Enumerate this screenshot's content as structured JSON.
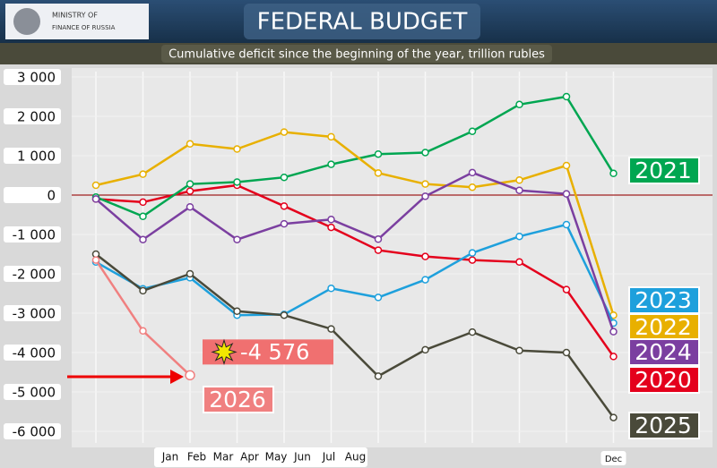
{
  "header": {
    "logo_line1": "MINISTRY OF",
    "logo_line2": "FINANCE OF RUSSIA"
  },
  "chart_data": {
    "type": "line",
    "title": "FEDERAL BUDGET",
    "subtitle": "Cumulative deficit since the beginning of the year, trillion rubles",
    "categories": [
      "Jan",
      "Feb",
      "Mar",
      "Apr",
      "May",
      "Jun",
      "Jul",
      "Aug",
      null,
      null,
      null,
      "Dec"
    ],
    "ylim": [
      -6000,
      3000
    ],
    "yticks": [
      {
        "value": 3000,
        "label": "3 000"
      },
      {
        "value": 2000,
        "label": "2 000"
      },
      {
        "value": 1000,
        "label": "1 000"
      },
      0,
      {
        "value": -1000,
        "label": "-1 000"
      },
      {
        "value": -2000,
        "label": "-2 000"
      },
      {
        "value": -3000,
        "label": "-3 000"
      },
      {
        "value": -4000,
        "label": "-4 000"
      },
      {
        "value": -5000,
        "label": "-5 000"
      },
      {
        "value": -6000,
        "label": "-6 000"
      }
    ],
    "grid": true,
    "series": [
      {
        "name": "2020",
        "color": "#e4001c",
        "values": [
          -100,
          -180,
          100,
          250,
          -280,
          -820,
          -1400,
          -1560,
          -1650,
          -1700,
          -2400,
          -4100
        ]
      },
      {
        "name": "2021",
        "color": "#00a651",
        "values": [
          -50,
          -540,
          280,
          330,
          450,
          780,
          1040,
          1080,
          1620,
          2300,
          2500,
          550
        ]
      },
      {
        "name": "2022",
        "color": "#e8b000",
        "values": [
          250,
          530,
          1300,
          1170,
          1600,
          1480,
          560,
          280,
          200,
          380,
          750,
          -3050
        ]
      },
      {
        "name": "2023",
        "color": "#1ea0dc",
        "values": [
          -1700,
          -2380,
          -2100,
          -3050,
          -3030,
          -2370,
          -2600,
          -2150,
          -1470,
          -1050,
          -750,
          -3250
        ]
      },
      {
        "name": "2024",
        "color": "#7b3fa0",
        "values": [
          -100,
          -1130,
          -300,
          -1130,
          -730,
          -620,
          -1120,
          -30,
          570,
          120,
          30,
          -3470
        ]
      },
      {
        "name": "2025",
        "color": "#4a4a3a",
        "values": [
          -1500,
          -2430,
          -2000,
          -2950,
          -3050,
          -3400,
          -4600,
          -3930,
          -3480,
          -3950,
          -4000,
          -5650
        ]
      },
      {
        "name": "2026",
        "color": "#f08080",
        "values": [
          -1650,
          -3450,
          -4576,
          null,
          null,
          null,
          null,
          null,
          null,
          null,
          null,
          null
        ],
        "value_labels": [
          null,
          null,
          "-4 576",
          null,
          null,
          null,
          null,
          null,
          null,
          null,
          null,
          null
        ]
      }
    ]
  }
}
